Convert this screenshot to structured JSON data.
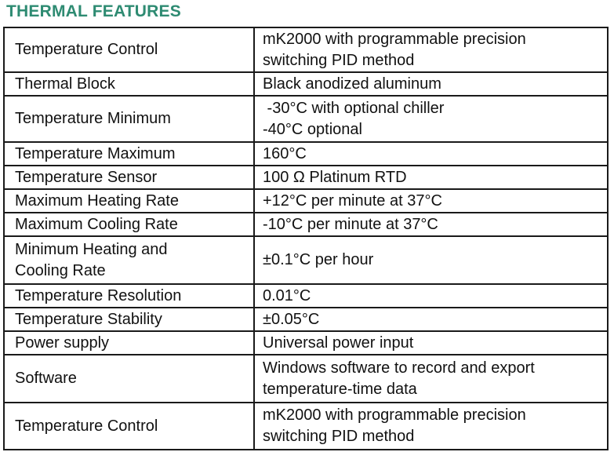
{
  "heading": "THERMAL FEATURES",
  "colors": {
    "heading": "#2e8b72",
    "border": "#1a1a1a",
    "text": "#111111"
  },
  "rows": [
    {
      "label": "Temperature Control",
      "value": [
        "mK2000 with programmable precision",
        "switching PID method"
      ]
    },
    {
      "label": "Thermal Block",
      "value": [
        "Black anodized aluminum"
      ]
    },
    {
      "label": "Temperature Minimum",
      "value": [
        " -30°C with optional chiller",
        "-40°C optional"
      ]
    },
    {
      "label": "Temperature Maximum",
      "value": [
        "160°C"
      ]
    },
    {
      "label": "Temperature Sensor",
      "value": [
        "100 Ω Platinum RTD"
      ]
    },
    {
      "label": "Maximum Heating Rate",
      "value": [
        "+12°C per minute at 37°C"
      ]
    },
    {
      "label": "Maximum Cooling Rate",
      "value": [
        "-10°C per minute at 37°C"
      ]
    },
    {
      "label": "Minimum Heating and Cooling Rate",
      "value": [
        "±0.1°C per hour"
      ]
    },
    {
      "label": "Temperature Resolution",
      "value": [
        "0.01°C"
      ]
    },
    {
      "label": "Temperature Stability",
      "value": [
        "±0.05°C"
      ]
    },
    {
      "label": "Power supply",
      "value": [
        "Universal power input"
      ]
    },
    {
      "label": "Software",
      "value": [
        "Windows software to record and export",
        "temperature-time data"
      ]
    },
    {
      "label": "Temperature Control",
      "value": [
        "mK2000 with programmable precision",
        "switching PID method"
      ]
    }
  ]
}
